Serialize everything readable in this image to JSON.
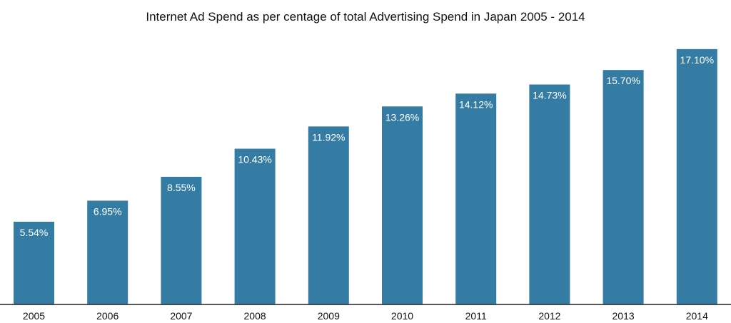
{
  "chart_data": {
    "type": "bar",
    "title": "Internet Ad Spend as per centage of total Advertising Spend in Japan 2005 - 2014",
    "xlabel": "",
    "ylabel": "",
    "categories": [
      "2005",
      "2006",
      "2007",
      "2008",
      "2009",
      "2010",
      "2011",
      "2012",
      "2013",
      "2014"
    ],
    "values": [
      5.54,
      6.95,
      8.55,
      10.43,
      11.92,
      13.26,
      14.12,
      14.73,
      15.7,
      17.1
    ],
    "data_labels": [
      "5.54%",
      "6.95%",
      "8.55%",
      "10.43%",
      "11.92%",
      "13.26%",
      "14.12%",
      "14.73%",
      "15.70%",
      "17.10%"
    ],
    "ylim": [
      0,
      18
    ],
    "grid": false,
    "legend": "none",
    "bar_color": "#357ca5",
    "axis_color": "#222222"
  }
}
